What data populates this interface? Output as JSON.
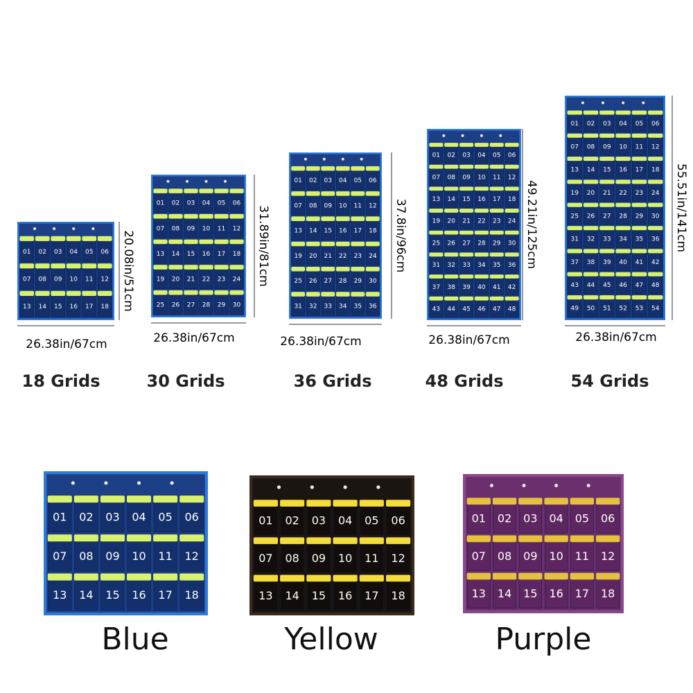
{
  "products": [
    {
      "grids": "18 Grids",
      "width": "26.38in/67cm",
      "height": "20.08in/51cm",
      "pockets": [
        "01",
        "02",
        "03",
        "04",
        "05",
        "06",
        "07",
        "08",
        "09",
        "10",
        "11",
        "12",
        "13",
        "14",
        "15",
        "16",
        "17",
        "18"
      ]
    },
    {
      "grids": "30 Grids",
      "width": "26.38in/67cm",
      "height": "31.89in/81cm",
      "pockets": [
        "01",
        "02",
        "03",
        "04",
        "05",
        "06",
        "07",
        "08",
        "09",
        "10",
        "11",
        "12",
        "13",
        "14",
        "15",
        "16",
        "17",
        "18",
        "19",
        "20",
        "21",
        "22",
        "23",
        "24",
        "25",
        "26",
        "27",
        "28",
        "29",
        "30"
      ]
    },
    {
      "grids": "36 Grids",
      "width": "26.38in/67cm",
      "height": "37.8in/96cm",
      "pockets": [
        "01",
        "02",
        "03",
        "04",
        "05",
        "06",
        "07",
        "08",
        "09",
        "10",
        "11",
        "12",
        "13",
        "14",
        "15",
        "16",
        "17",
        "18",
        "19",
        "20",
        "21",
        "22",
        "23",
        "24",
        "25",
        "26",
        "27",
        "28",
        "29",
        "30",
        "31",
        "32",
        "33",
        "34",
        "35",
        "36"
      ]
    },
    {
      "grids": "48 Grids",
      "width": "26.38in/67cm",
      "height": "49.21in/125cm",
      "pockets": [
        "01",
        "02",
        "03",
        "04",
        "05",
        "06",
        "07",
        "08",
        "09",
        "10",
        "11",
        "12",
        "13",
        "14",
        "15",
        "16",
        "17",
        "18",
        "19",
        "20",
        "21",
        "22",
        "23",
        "24",
        "25",
        "26",
        "27",
        "28",
        "29",
        "30",
        "31",
        "32",
        "33",
        "34",
        "35",
        "36",
        "37",
        "38",
        "39",
        "40",
        "41",
        "42",
        "43",
        "44",
        "45",
        "46",
        "47",
        "48"
      ]
    },
    {
      "grids": "54 Grids",
      "width": "26.38in/67cm",
      "height": "55.51in/141cm",
      "pockets": [
        "01",
        "02",
        "03",
        "04",
        "05",
        "06",
        "07",
        "08",
        "09",
        "10",
        "11",
        "12",
        "13",
        "14",
        "15",
        "16",
        "17",
        "18",
        "19",
        "20",
        "21",
        "22",
        "23",
        "24",
        "25",
        "26",
        "27",
        "28",
        "29",
        "30",
        "31",
        "32",
        "33",
        "34",
        "35",
        "36",
        "37",
        "38",
        "39",
        "40",
        "41",
        "42",
        "43",
        "44",
        "45",
        "46",
        "47",
        "48",
        "49",
        "50",
        "51",
        "52",
        "53",
        "54"
      ]
    }
  ],
  "colors": [
    {
      "name": "Blue",
      "pockets": [
        "01",
        "02",
        "03",
        "04",
        "05",
        "06",
        "07",
        "08",
        "09",
        "10",
        "11",
        "12",
        "13",
        "14",
        "15",
        "16",
        "17",
        "18"
      ]
    },
    {
      "name": "Yellow",
      "pockets": [
        "01",
        "02",
        "03",
        "04",
        "05",
        "06",
        "07",
        "08",
        "09",
        "10",
        "11",
        "12",
        "13",
        "14",
        "15",
        "16",
        "17",
        "18"
      ]
    },
    {
      "name": "Purple",
      "pockets": [
        "01",
        "02",
        "03",
        "04",
        "05",
        "06",
        "07",
        "08",
        "09",
        "10",
        "11",
        "12",
        "13",
        "14",
        "15",
        "16",
        "17",
        "18"
      ]
    }
  ]
}
